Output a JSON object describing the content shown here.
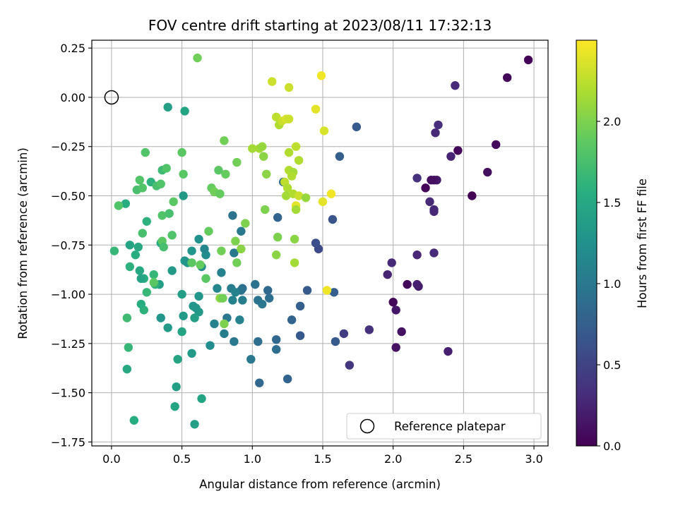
{
  "chart_data": {
    "type": "scatter",
    "title": "FOV centre drift starting at 2023/08/11 17:32:13",
    "xlabel": "Angular distance from reference (arcmin)",
    "ylabel": "Rotation from reference (arcmin)",
    "xlim": [
      -0.14,
      3.1
    ],
    "ylim": [
      -1.77,
      0.29
    ],
    "xticks": [
      0.0,
      0.5,
      1.0,
      1.5,
      2.0,
      2.5,
      3.0
    ],
    "xtick_labels": [
      "0.0",
      "0.5",
      "1.0",
      "1.5",
      "2.0",
      "2.5",
      "3.0"
    ],
    "yticks": [
      0.25,
      0.0,
      -0.25,
      -0.5,
      -0.75,
      -1.0,
      -1.25,
      -1.5,
      -1.75
    ],
    "ytick_labels": [
      "0.25",
      "0.00",
      "−0.25",
      "−0.50",
      "−0.75",
      "−1.00",
      "−1.25",
      "−1.50",
      "−1.75"
    ],
    "grid": true,
    "legend": {
      "location": "lower-right",
      "label": "Reference platepar"
    },
    "reference_point": {
      "x": 0.0,
      "y": 0.0
    },
    "colorbar": {
      "label": "Hours from first FF file",
      "colormap": "viridis",
      "range": [
        0.0,
        2.5
      ],
      "ticks": [
        0.0,
        0.5,
        1.0,
        1.5,
        2.0
      ],
      "tick_labels": [
        "0.0",
        "0.5",
        "1.0",
        "1.5",
        "2.0"
      ]
    },
    "series": [
      {
        "color_by": "hours",
        "points": [
          [
            2.96,
            0.19,
            0.03
          ],
          [
            2.81,
            0.1,
            0.05
          ],
          [
            2.73,
            -0.24,
            0.06
          ],
          [
            2.67,
            -0.38,
            0.1
          ],
          [
            2.56,
            -0.5,
            0.02
          ],
          [
            2.46,
            -0.27,
            0.04
          ],
          [
            2.44,
            0.06,
            0.3
          ],
          [
            2.41,
            -0.3,
            0.25
          ],
          [
            2.32,
            -0.14,
            0.32
          ],
          [
            2.3,
            -0.18,
            0.3
          ],
          [
            2.31,
            -0.42,
            0.18
          ],
          [
            2.29,
            -0.42,
            0.12
          ],
          [
            2.27,
            -0.42,
            0.1
          ],
          [
            2.23,
            -0.46,
            0.03
          ],
          [
            2.17,
            -0.41,
            0.35
          ],
          [
            2.26,
            -0.53,
            0.3
          ],
          [
            2.29,
            -0.57,
            0.3
          ],
          [
            2.29,
            -0.58,
            0.28
          ],
          [
            2.29,
            -0.79,
            0.3
          ],
          [
            2.17,
            -0.8,
            0.27
          ],
          [
            2.18,
            -0.96,
            0.18
          ],
          [
            2.17,
            -0.95,
            0.22
          ],
          [
            2.1,
            -0.95,
            0.05
          ],
          [
            1.99,
            -0.84,
            0.3
          ],
          [
            1.96,
            -0.9,
            0.25
          ],
          [
            2.0,
            -1.04,
            0.05
          ],
          [
            2.02,
            -1.08,
            0.15
          ],
          [
            2.06,
            -1.19,
            0.12
          ],
          [
            2.02,
            -1.27,
            0.12
          ],
          [
            2.39,
            -1.29,
            0.22
          ],
          [
            1.83,
            -1.18,
            0.35
          ],
          [
            1.69,
            -1.36,
            0.4
          ],
          [
            1.65,
            -1.2,
            0.45
          ],
          [
            1.74,
            -0.15,
            0.7
          ],
          [
            1.62,
            -0.3,
            0.75
          ],
          [
            1.57,
            -0.62,
            0.65
          ],
          [
            1.58,
            -0.99,
            0.75
          ],
          [
            1.59,
            -1.24,
            0.7
          ],
          [
            1.47,
            -0.77,
            0.55
          ],
          [
            1.45,
            -0.74,
            0.6
          ],
          [
            1.39,
            -0.98,
            0.7
          ],
          [
            1.34,
            -1.06,
            0.75
          ],
          [
            1.34,
            -1.21,
            0.7
          ],
          [
            1.28,
            -1.13,
            0.8
          ],
          [
            1.25,
            -1.43,
            0.8
          ],
          [
            1.18,
            -0.61,
            0.8
          ],
          [
            1.22,
            -0.43,
            0.85
          ],
          [
            1.17,
            -1.23,
            0.85
          ],
          [
            1.17,
            -1.28,
            0.9
          ],
          [
            1.12,
            -1.02,
            0.9
          ],
          [
            1.11,
            -0.98,
            0.85
          ],
          [
            1.04,
            -1.03,
            0.95
          ],
          [
            1.07,
            -1.05,
            1.0
          ],
          [
            1.04,
            -1.24,
            0.9
          ],
          [
            1.05,
            -1.45,
            0.85
          ],
          [
            1.02,
            -0.95,
            0.95
          ],
          [
            0.99,
            -1.33,
            1.0
          ],
          [
            0.93,
            -0.97,
            0.9
          ],
          [
            0.92,
            -0.98,
            0.95
          ],
          [
            0.93,
            -1.03,
            1.05
          ],
          [
            0.92,
            -0.68,
            1.0
          ],
          [
            0.86,
            -0.6,
            0.95
          ],
          [
            0.87,
            -0.79,
            1.0
          ],
          [
            0.85,
            -0.97,
            1.05
          ],
          [
            0.88,
            -0.99,
            1.1
          ],
          [
            0.86,
            -1.03,
            1.1
          ],
          [
            0.82,
            -1.12,
            1.0
          ],
          [
            0.8,
            -1.2,
            1.05
          ],
          [
            0.91,
            -1.13,
            1.1
          ],
          [
            0.87,
            -1.24,
            1.0
          ],
          [
            0.78,
            -0.89,
            1.1
          ],
          [
            0.75,
            -0.97,
            1.15
          ],
          [
            0.73,
            -1.15,
            1.1
          ],
          [
            0.7,
            -1.26,
            1.2
          ],
          [
            0.73,
            -0.48,
            1.1
          ],
          [
            0.67,
            -0.8,
            1.2
          ],
          [
            0.66,
            -0.77,
            1.15
          ],
          [
            0.64,
            -0.86,
            1.2
          ],
          [
            0.62,
            -0.72,
            1.25
          ],
          [
            0.62,
            -1.01,
            1.3
          ],
          [
            0.62,
            -1.09,
            1.35
          ],
          [
            0.6,
            -1.07,
            1.3
          ],
          [
            0.58,
            -1.06,
            1.3
          ],
          [
            0.59,
            -1.12,
            1.4
          ],
          [
            0.57,
            -0.78,
            1.3
          ],
          [
            0.54,
            -0.84,
            1.35
          ],
          [
            0.52,
            -0.83,
            1.3
          ],
          [
            0.57,
            -1.3,
            1.35
          ],
          [
            0.59,
            -1.66,
            1.4
          ],
          [
            0.64,
            -1.53,
            1.45
          ],
          [
            0.51,
            -0.5,
            1.35
          ],
          [
            0.52,
            -0.07,
            1.45
          ],
          [
            0.4,
            -0.05,
            1.4
          ],
          [
            0.5,
            -1.0,
            1.4
          ],
          [
            0.51,
            -1.11,
            1.35
          ],
          [
            0.5,
            -1.19,
            1.45
          ],
          [
            0.47,
            -1.33,
            1.45
          ],
          [
            0.46,
            -1.47,
            1.4
          ],
          [
            0.45,
            -1.57,
            1.45
          ],
          [
            0.43,
            -0.88,
            1.35
          ],
          [
            0.4,
            -1.17,
            1.35
          ],
          [
            0.35,
            -1.12,
            1.3
          ],
          [
            0.34,
            -0.95,
            1.4
          ],
          [
            0.35,
            -0.74,
            1.5
          ],
          [
            0.31,
            -0.95,
            1.6
          ],
          [
            0.3,
            -0.9,
            1.65
          ],
          [
            0.28,
            -0.43,
            1.6
          ],
          [
            0.23,
            -0.92,
            1.55
          ],
          [
            0.25,
            -0.99,
            1.65
          ],
          [
            0.23,
            -1.08,
            1.6
          ],
          [
            0.21,
            -1.05,
            1.55
          ],
          [
            0.21,
            -0.92,
            1.45
          ],
          [
            0.2,
            -0.88,
            1.5
          ],
          [
            0.19,
            -0.76,
            1.5
          ],
          [
            0.17,
            -0.8,
            1.55
          ],
          [
            0.13,
            -0.75,
            1.45
          ],
          [
            0.13,
            -0.86,
            1.6
          ],
          [
            0.11,
            -1.12,
            1.7
          ],
          [
            0.12,
            -1.27,
            1.65
          ],
          [
            0.11,
            -1.38,
            1.5
          ],
          [
            0.16,
            -1.64,
            1.55
          ],
          [
            0.1,
            -0.54,
            1.55
          ],
          [
            0.02,
            -0.78,
            1.65
          ],
          [
            0.05,
            -0.55,
            1.8
          ],
          [
            0.18,
            -0.47,
            1.75
          ],
          [
            0.2,
            -0.42,
            1.8
          ],
          [
            0.22,
            -0.46,
            1.8
          ],
          [
            0.24,
            -0.28,
            1.8
          ],
          [
            0.22,
            -0.69,
            1.75
          ],
          [
            0.25,
            -0.63,
            1.6
          ],
          [
            0.32,
            -0.45,
            1.75
          ],
          [
            0.35,
            -0.44,
            1.8
          ],
          [
            0.36,
            -0.37,
            1.7
          ],
          [
            0.39,
            -0.36,
            1.8
          ],
          [
            0.36,
            -0.6,
            1.8
          ],
          [
            0.41,
            -0.59,
            1.75
          ],
          [
            0.43,
            -0.7,
            1.8
          ],
          [
            0.36,
            -0.73,
            1.85
          ],
          [
            0.37,
            -0.76,
            1.75
          ],
          [
            0.44,
            -0.53,
            1.85
          ],
          [
            0.5,
            -0.28,
            1.85
          ],
          [
            0.51,
            -0.39,
            1.85
          ],
          [
            0.57,
            -0.84,
            1.85
          ],
          [
            0.63,
            -0.85,
            1.9
          ],
          [
            0.67,
            -0.92,
            1.85
          ],
          [
            0.69,
            -0.68,
            1.9
          ],
          [
            0.71,
            -0.46,
            1.9
          ],
          [
            0.73,
            -0.48,
            1.95
          ],
          [
            0.76,
            -0.37,
            1.85
          ],
          [
            0.77,
            -0.49,
            1.9
          ],
          [
            0.78,
            -0.78,
            1.95
          ],
          [
            0.77,
            -1.02,
            2.05
          ],
          [
            0.79,
            -1.02,
            1.95
          ],
          [
            0.8,
            -1.15,
            2.0
          ],
          [
            0.81,
            -0.39,
            1.9
          ],
          [
            0.8,
            -0.22,
            1.95
          ],
          [
            0.89,
            -0.33,
            1.95
          ],
          [
            0.88,
            -0.73,
            2.0
          ],
          [
            0.89,
            -0.84,
            1.95
          ],
          [
            0.92,
            -0.77,
            2.05
          ],
          [
            0.95,
            -0.64,
            2.0
          ],
          [
            0.61,
            0.2,
            1.95
          ],
          [
            0.3,
            -0.94,
            1.85
          ],
          [
            1.0,
            -0.26,
            2.15
          ],
          [
            1.05,
            -0.26,
            2.15
          ],
          [
            1.07,
            -0.25,
            2.1
          ],
          [
            1.08,
            -0.3,
            2.05
          ],
          [
            1.1,
            -0.39,
            2.05
          ],
          [
            1.09,
            -0.57,
            2.0
          ],
          [
            1.17,
            -0.8,
            2.05
          ],
          [
            1.18,
            -0.71,
            2.0
          ],
          [
            1.14,
            0.08,
            2.3
          ],
          [
            1.17,
            -0.1,
            2.25
          ],
          [
            1.19,
            -0.14,
            2.2
          ],
          [
            1.21,
            -0.12,
            2.3
          ],
          [
            1.24,
            -0.11,
            2.35
          ],
          [
            1.26,
            -0.11,
            2.3
          ],
          [
            1.26,
            -0.37,
            2.2
          ],
          [
            1.29,
            -0.38,
            2.15
          ],
          [
            1.28,
            -0.4,
            2.2
          ],
          [
            1.26,
            -0.28,
            2.2
          ],
          [
            1.31,
            -0.25,
            2.25
          ],
          [
            1.33,
            -0.32,
            2.2
          ],
          [
            1.23,
            -0.43,
            2.25
          ],
          [
            1.25,
            -0.46,
            2.2
          ],
          [
            1.24,
            -0.5,
            2.15
          ],
          [
            1.29,
            -0.49,
            2.2
          ],
          [
            1.31,
            -0.55,
            2.4
          ],
          [
            1.33,
            -0.5,
            2.3
          ],
          [
            1.31,
            -0.57,
            2.15
          ],
          [
            1.3,
            -0.72,
            2.05
          ],
          [
            1.3,
            -0.84,
            2.15
          ],
          [
            1.38,
            -0.51,
            2.1
          ],
          [
            1.26,
            0.05,
            2.3
          ],
          [
            1.45,
            -0.06,
            2.4
          ],
          [
            1.49,
            0.11,
            2.45
          ],
          [
            1.51,
            -0.17,
            2.35
          ],
          [
            1.5,
            -0.53,
            2.4
          ],
          [
            1.56,
            -0.49,
            2.45
          ],
          [
            1.53,
            -0.98,
            2.45
          ]
        ]
      }
    ]
  }
}
